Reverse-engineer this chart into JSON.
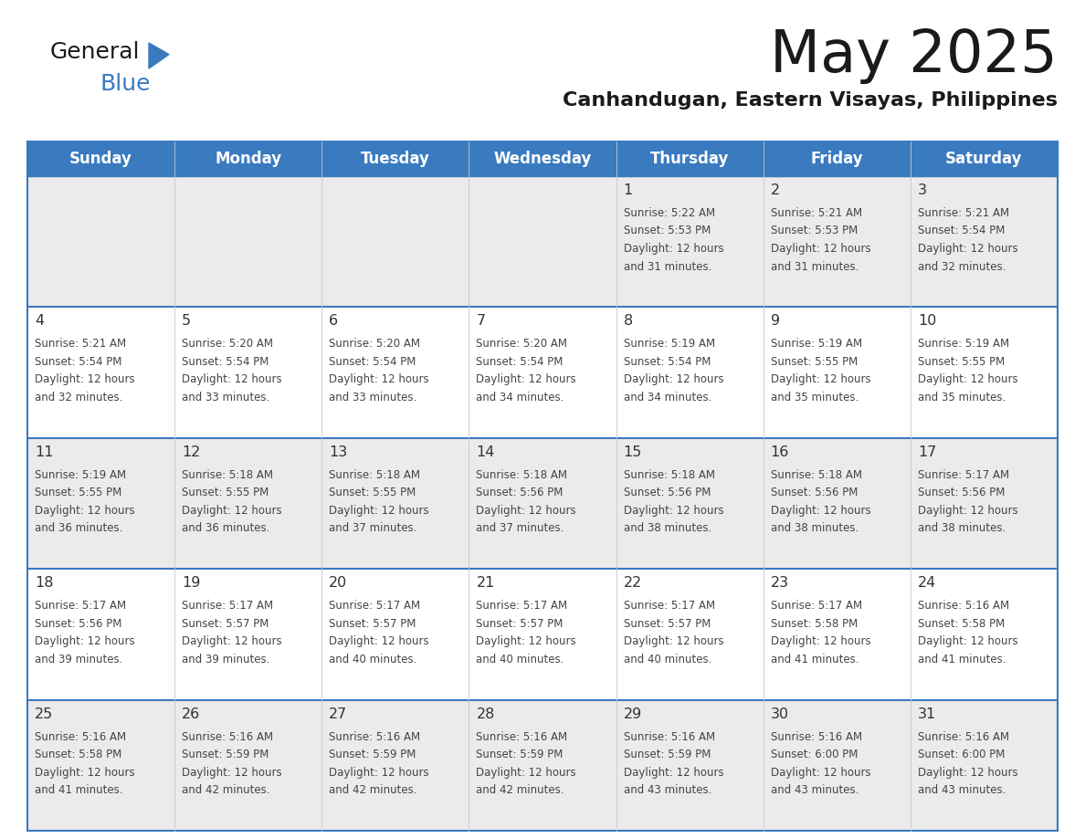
{
  "title": "May 2025",
  "subtitle": "Canhandugan, Eastern Visayas, Philippines",
  "header_bg_color": "#3a7abf",
  "header_text_color": "#ffffff",
  "day_names": [
    "Sunday",
    "Monday",
    "Tuesday",
    "Wednesday",
    "Thursday",
    "Friday",
    "Saturday"
  ],
  "cell_bg_row0": "#ebebeb",
  "cell_bg_row1": "#ffffff",
  "cell_bg_row2": "#ebebeb",
  "cell_bg_row3": "#ffffff",
  "cell_bg_row4": "#ebebeb",
  "date_color": "#333333",
  "text_color": "#444444",
  "line_color": "#3a7abf",
  "days": [
    {
      "day": 1,
      "col": 4,
      "row": 0,
      "sunrise": "5:22 AM",
      "sunset": "5:53 PM",
      "daylight": "12 hours and 31 minutes."
    },
    {
      "day": 2,
      "col": 5,
      "row": 0,
      "sunrise": "5:21 AM",
      "sunset": "5:53 PM",
      "daylight": "12 hours and 31 minutes."
    },
    {
      "day": 3,
      "col": 6,
      "row": 0,
      "sunrise": "5:21 AM",
      "sunset": "5:54 PM",
      "daylight": "12 hours and 32 minutes."
    },
    {
      "day": 4,
      "col": 0,
      "row": 1,
      "sunrise": "5:21 AM",
      "sunset": "5:54 PM",
      "daylight": "12 hours and 32 minutes."
    },
    {
      "day": 5,
      "col": 1,
      "row": 1,
      "sunrise": "5:20 AM",
      "sunset": "5:54 PM",
      "daylight": "12 hours and 33 minutes."
    },
    {
      "day": 6,
      "col": 2,
      "row": 1,
      "sunrise": "5:20 AM",
      "sunset": "5:54 PM",
      "daylight": "12 hours and 33 minutes."
    },
    {
      "day": 7,
      "col": 3,
      "row": 1,
      "sunrise": "5:20 AM",
      "sunset": "5:54 PM",
      "daylight": "12 hours and 34 minutes."
    },
    {
      "day": 8,
      "col": 4,
      "row": 1,
      "sunrise": "5:19 AM",
      "sunset": "5:54 PM",
      "daylight": "12 hours and 34 minutes."
    },
    {
      "day": 9,
      "col": 5,
      "row": 1,
      "sunrise": "5:19 AM",
      "sunset": "5:55 PM",
      "daylight": "12 hours and 35 minutes."
    },
    {
      "day": 10,
      "col": 6,
      "row": 1,
      "sunrise": "5:19 AM",
      "sunset": "5:55 PM",
      "daylight": "12 hours and 35 minutes."
    },
    {
      "day": 11,
      "col": 0,
      "row": 2,
      "sunrise": "5:19 AM",
      "sunset": "5:55 PM",
      "daylight": "12 hours and 36 minutes."
    },
    {
      "day": 12,
      "col": 1,
      "row": 2,
      "sunrise": "5:18 AM",
      "sunset": "5:55 PM",
      "daylight": "12 hours and 36 minutes."
    },
    {
      "day": 13,
      "col": 2,
      "row": 2,
      "sunrise": "5:18 AM",
      "sunset": "5:55 PM",
      "daylight": "12 hours and 37 minutes."
    },
    {
      "day": 14,
      "col": 3,
      "row": 2,
      "sunrise": "5:18 AM",
      "sunset": "5:56 PM",
      "daylight": "12 hours and 37 minutes."
    },
    {
      "day": 15,
      "col": 4,
      "row": 2,
      "sunrise": "5:18 AM",
      "sunset": "5:56 PM",
      "daylight": "12 hours and 38 minutes."
    },
    {
      "day": 16,
      "col": 5,
      "row": 2,
      "sunrise": "5:18 AM",
      "sunset": "5:56 PM",
      "daylight": "12 hours and 38 minutes."
    },
    {
      "day": 17,
      "col": 6,
      "row": 2,
      "sunrise": "5:17 AM",
      "sunset": "5:56 PM",
      "daylight": "12 hours and 38 minutes."
    },
    {
      "day": 18,
      "col": 0,
      "row": 3,
      "sunrise": "5:17 AM",
      "sunset": "5:56 PM",
      "daylight": "12 hours and 39 minutes."
    },
    {
      "day": 19,
      "col": 1,
      "row": 3,
      "sunrise": "5:17 AM",
      "sunset": "5:57 PM",
      "daylight": "12 hours and 39 minutes."
    },
    {
      "day": 20,
      "col": 2,
      "row": 3,
      "sunrise": "5:17 AM",
      "sunset": "5:57 PM",
      "daylight": "12 hours and 40 minutes."
    },
    {
      "day": 21,
      "col": 3,
      "row": 3,
      "sunrise": "5:17 AM",
      "sunset": "5:57 PM",
      "daylight": "12 hours and 40 minutes."
    },
    {
      "day": 22,
      "col": 4,
      "row": 3,
      "sunrise": "5:17 AM",
      "sunset": "5:57 PM",
      "daylight": "12 hours and 40 minutes."
    },
    {
      "day": 23,
      "col": 5,
      "row": 3,
      "sunrise": "5:17 AM",
      "sunset": "5:58 PM",
      "daylight": "12 hours and 41 minutes."
    },
    {
      "day": 24,
      "col": 6,
      "row": 3,
      "sunrise": "5:16 AM",
      "sunset": "5:58 PM",
      "daylight": "12 hours and 41 minutes."
    },
    {
      "day": 25,
      "col": 0,
      "row": 4,
      "sunrise": "5:16 AM",
      "sunset": "5:58 PM",
      "daylight": "12 hours and 41 minutes."
    },
    {
      "day": 26,
      "col": 1,
      "row": 4,
      "sunrise": "5:16 AM",
      "sunset": "5:59 PM",
      "daylight": "12 hours and 42 minutes."
    },
    {
      "day": 27,
      "col": 2,
      "row": 4,
      "sunrise": "5:16 AM",
      "sunset": "5:59 PM",
      "daylight": "12 hours and 42 minutes."
    },
    {
      "day": 28,
      "col": 3,
      "row": 4,
      "sunrise": "5:16 AM",
      "sunset": "5:59 PM",
      "daylight": "12 hours and 42 minutes."
    },
    {
      "day": 29,
      "col": 4,
      "row": 4,
      "sunrise": "5:16 AM",
      "sunset": "5:59 PM",
      "daylight": "12 hours and 43 minutes."
    },
    {
      "day": 30,
      "col": 5,
      "row": 4,
      "sunrise": "5:16 AM",
      "sunset": "6:00 PM",
      "daylight": "12 hours and 43 minutes."
    },
    {
      "day": 31,
      "col": 6,
      "row": 4,
      "sunrise": "5:16 AM",
      "sunset": "6:00 PM",
      "daylight": "12 hours and 43 minutes."
    }
  ]
}
